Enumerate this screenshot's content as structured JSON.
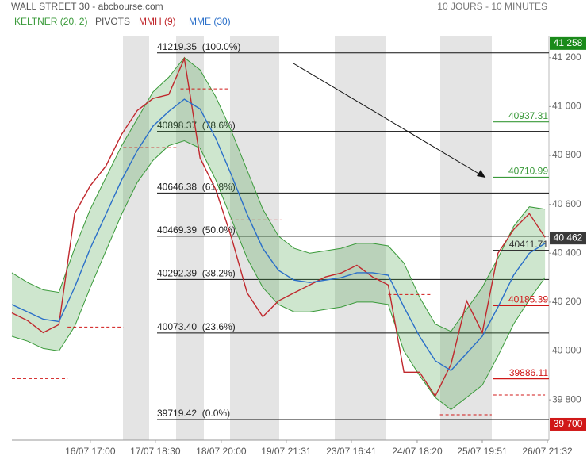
{
  "chart_data": {
    "type": "line",
    "title": "WALL STREET 30 - abcbourse.com",
    "subtitle": "10 JOURS - 10 MINUTES",
    "x": [
      0,
      2,
      4,
      6,
      8,
      10,
      12,
      14,
      16,
      18,
      20,
      22,
      24,
      26,
      28,
      30,
      32,
      34,
      36,
      38,
      40,
      42,
      44,
      46,
      48,
      50,
      52,
      54,
      56,
      58,
      60,
      62,
      64,
      66,
      68
    ],
    "xlim": [
      0,
      68.5
    ],
    "xticks": [
      {
        "value": 10,
        "label": "16/07 17:00"
      },
      {
        "value": 18.3,
        "label": "17/07 18:30"
      },
      {
        "value": 26.7,
        "label": "18/07 20:00"
      },
      {
        "value": 35,
        "label": "19/07 21:31"
      },
      {
        "value": 43.3,
        "label": "23/07 16:41"
      },
      {
        "value": 51.7,
        "label": "24/07 18:20"
      },
      {
        "value": 60,
        "label": "25/07 19:51"
      },
      {
        "value": 68.3,
        "label": "26/07 21:32"
      }
    ],
    "ylim": [
      39635,
      41290
    ],
    "yticks": [
      {
        "value": 39800,
        "label": "39 800"
      },
      {
        "value": 40000,
        "label": "40 000"
      },
      {
        "value": 40200,
        "label": "40 200"
      },
      {
        "value": 40400,
        "label": "40 400"
      },
      {
        "value": 40600,
        "label": "40 600"
      },
      {
        "value": 40800,
        "label": "40 800"
      },
      {
        "value": 41000,
        "label": "41 000"
      },
      {
        "value": 41200,
        "label": "41 200"
      }
    ],
    "fib_levels": [
      {
        "value": 41219.35,
        "label": "41219.35  (100.0%)"
      },
      {
        "value": 40898.37,
        "label": "40898.37  (78.6%)"
      },
      {
        "value": 40646.38,
        "label": "40646.38  (61.8%)"
      },
      {
        "value": 40469.39,
        "label": "40469.39  (50.0%)"
      },
      {
        "value": 40292.39,
        "label": "40292.39  (38.2%)"
      },
      {
        "value": 40073.4,
        "label": "40073.40  (23.6%)"
      },
      {
        "value": 39719.42,
        "label": "39719.42  (0.0%)"
      }
    ],
    "price_markers": [
      {
        "value": 41258,
        "label": "41 258",
        "color": "#1a8a1a"
      },
      {
        "value": 40462,
        "label": "40 462",
        "color": "#3a3a3a"
      },
      {
        "value": 39700,
        "label": "39 700",
        "color": "#d01818"
      }
    ],
    "series": [
      {
        "name": "KELTNER (20, 2)",
        "color": "#3a9a3a",
        "kind": "band",
        "upper": [
          40320,
          40280,
          40250,
          40240,
          40420,
          40580,
          40710,
          40840,
          40950,
          41060,
          41120,
          41200,
          41150,
          41040,
          40900,
          40740,
          40580,
          40470,
          40420,
          40400,
          40410,
          40420,
          40440,
          40440,
          40430,
          40360,
          40220,
          40110,
          40080,
          40170,
          40260,
          40380,
          40510,
          40590,
          40580
        ],
        "lower": [
          40060,
          40040,
          40010,
          40000,
          40100,
          40260,
          40410,
          40560,
          40690,
          40780,
          40840,
          40860,
          40830,
          40700,
          40540,
          40380,
          40260,
          40190,
          40160,
          40160,
          40170,
          40180,
          40200,
          40200,
          40190,
          40000,
          39900,
          39810,
          39760,
          39810,
          39860,
          39980,
          40110,
          40210,
          40300
        ]
      },
      {
        "name": "PIVOTS",
        "color": "#555555",
        "kind": "pivots",
        "levels": [
          {
            "value": 40937.31,
            "color": "#3a9a3a"
          },
          {
            "value": 40710.99,
            "color": "#3a9a3a"
          },
          {
            "value": 40411.71,
            "color": "#333333"
          },
          {
            "value": 40185.39,
            "color": "#d01818"
          },
          {
            "value": 39886.11,
            "color": "#d01818"
          }
        ],
        "segments": [
          {
            "x": [
              0,
              7.1
            ],
            "value": 39887
          },
          {
            "x": [
              7.1,
              14.2
            ],
            "value": 40098
          },
          {
            "x": [
              14.2,
              21
            ],
            "value": 40832
          },
          {
            "x": [
              21.5,
              27.8
            ],
            "value": 41072
          },
          {
            "x": [
              27.8,
              34.4
            ],
            "value": 40536
          },
          {
            "x": [
              48,
              53.6
            ],
            "value": 40231
          },
          {
            "x": [
              54.6,
              61.2
            ],
            "value": 39739
          },
          {
            "x": [
              61.4,
              68
            ],
            "value": 39820
          }
        ]
      },
      {
        "name": "MMH (9)",
        "color": "#c0282d",
        "kind": "line",
        "values": [
          40156,
          40124,
          40075,
          40108,
          40562,
          40676,
          40757,
          40887,
          40984,
          41033,
          41049,
          41196,
          40790,
          40660,
          40465,
          40238,
          40140,
          40205,
          40238,
          40270,
          40303,
          40319,
          40351,
          40303,
          40270,
          39913,
          39913,
          39815,
          39945,
          40205,
          40075,
          40400,
          40497,
          40562,
          40465
        ]
      },
      {
        "name": "MME (30)",
        "color": "#2a6fc9",
        "kind": "line",
        "values": [
          40190,
          40160,
          40130,
          40120,
          40260,
          40420,
          40560,
          40700,
          40820,
          40920,
          40980,
          41030,
          40990,
          40870,
          40720,
          40560,
          40420,
          40330,
          40290,
          40280,
          40290,
          40300,
          40320,
          40320,
          40310,
          40180,
          40060,
          39960,
          39920,
          39990,
          40060,
          40180,
          40310,
          40400,
          40440
        ]
      }
    ]
  }
}
